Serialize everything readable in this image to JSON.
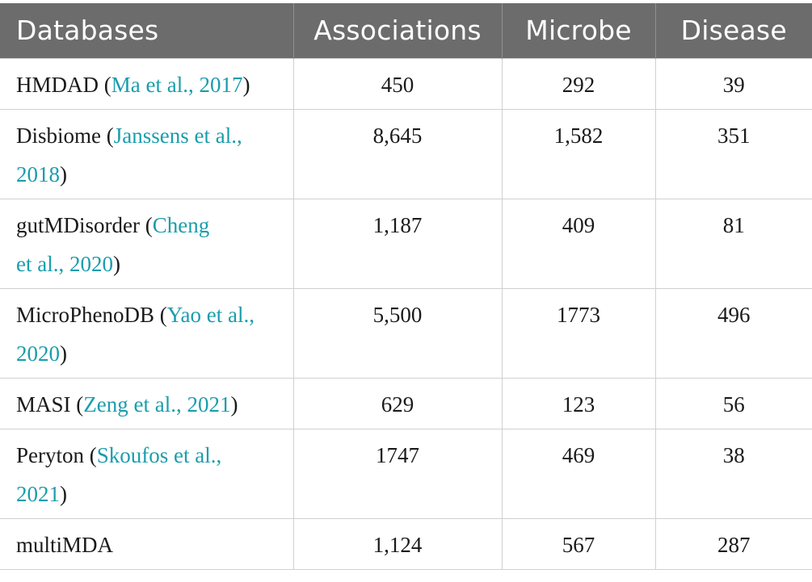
{
  "table": {
    "headers": [
      "Databases",
      "Associations",
      "Microbe",
      "Disease"
    ],
    "rows": [
      {
        "name": "HMDAD",
        "cite": "Ma et al., 2017",
        "associations": "450",
        "microbe": "292",
        "disease": "39"
      },
      {
        "name": "Disbiome",
        "cite": "Janssens et al., 2018",
        "associations": "8,645",
        "microbe": "1,582",
        "disease": "351"
      },
      {
        "name": "gutMDisorder",
        "cite": "Cheng et al., 2020",
        "associations": "1,187",
        "microbe": "409",
        "disease": "81"
      },
      {
        "name": "MicroPhenoDB",
        "cite": "Yao et al., 2020",
        "associations": "5,500",
        "microbe": "1773",
        "disease": "496"
      },
      {
        "name": "MASI",
        "cite": "Zeng et al., 2021",
        "associations": "629",
        "microbe": "123",
        "disease": "56"
      },
      {
        "name": "Peryton",
        "cite": "Skoufos et al., 2021",
        "associations": "1747",
        "microbe": "469",
        "disease": "38"
      },
      {
        "name": "multiMDA",
        "cite": "",
        "associations": "1,124",
        "microbe": "567",
        "disease": "287"
      }
    ]
  },
  "colors": {
    "header_bg": "#6c6c6c",
    "header_text": "#ffffff",
    "citation_link": "#1a9dac"
  }
}
